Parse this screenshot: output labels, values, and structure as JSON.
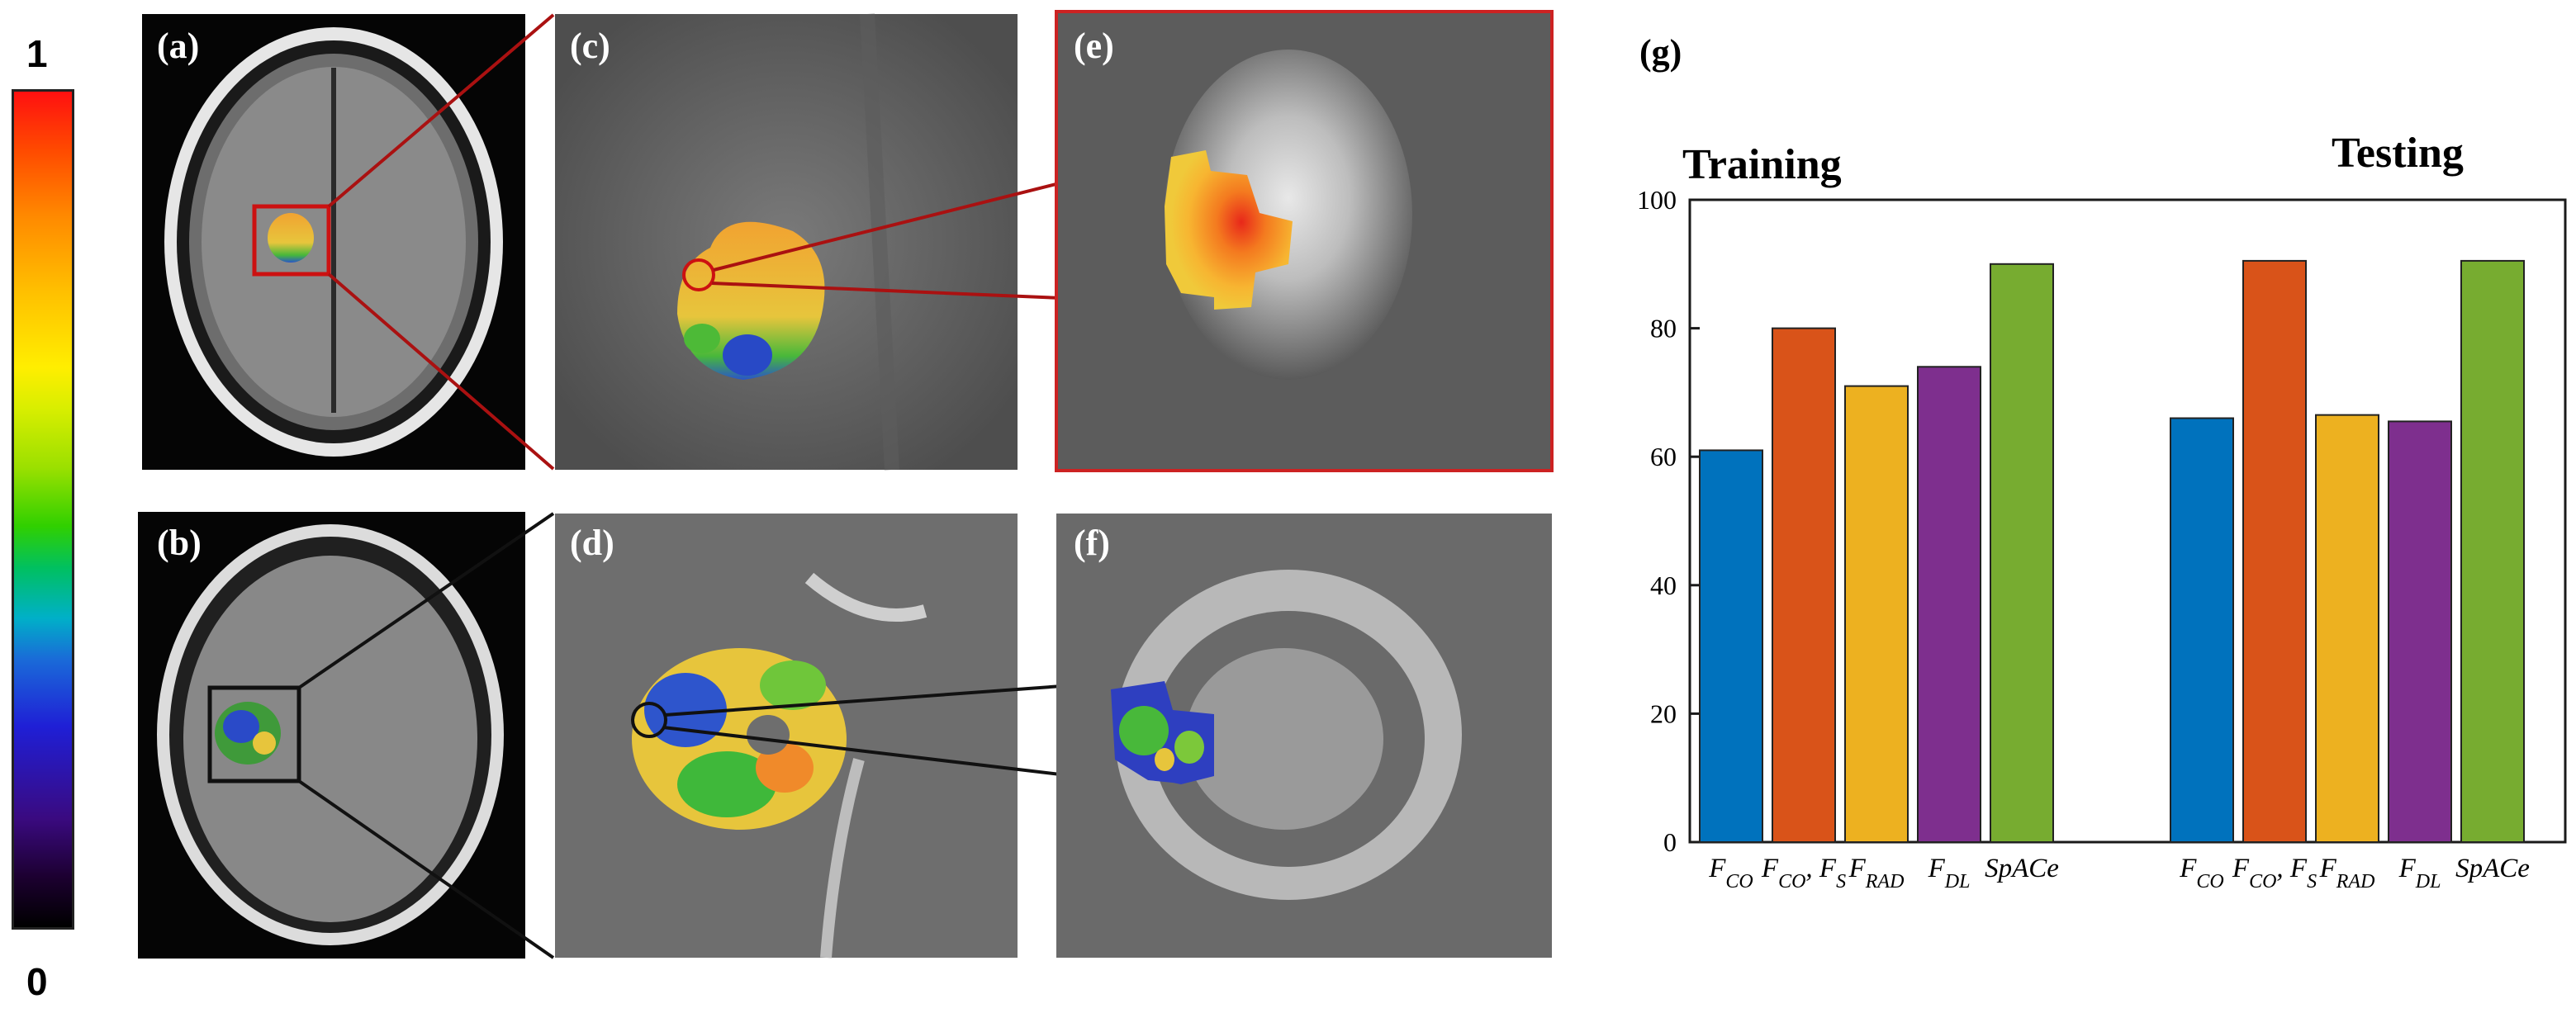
{
  "colorbar": {
    "max_label": "1",
    "min_label": "0"
  },
  "panels": {
    "a": "(a)",
    "b": "(b)",
    "c": "(c)",
    "d": "(d)",
    "e": "(e)",
    "f": "(f)",
    "g": "(g)"
  },
  "chart_data": {
    "type": "bar",
    "groups": [
      {
        "title": "Training",
        "categories": [
          "F_CO",
          "F_CO, F_S",
          "F_RAD",
          "F_DL",
          "SpACe"
        ],
        "values": [
          61,
          80,
          71,
          74,
          90
        ]
      },
      {
        "title": "Testing",
        "categories": [
          "F_CO",
          "F_CO, F_S",
          "F_RAD",
          "F_DL",
          "SpACe"
        ],
        "values": [
          66,
          90.5,
          66.5,
          65.5,
          90.5
        ]
      }
    ],
    "bar_colors": [
      "#0072bd",
      "#d95319",
      "#edb120",
      "#7e2f8e",
      "#77ac30"
    ],
    "ylim": [
      0,
      100
    ],
    "yticks": [
      "0",
      "20",
      "40",
      "60",
      "80",
      "100"
    ],
    "xlabel": "",
    "ylabel": "",
    "grid": false
  }
}
